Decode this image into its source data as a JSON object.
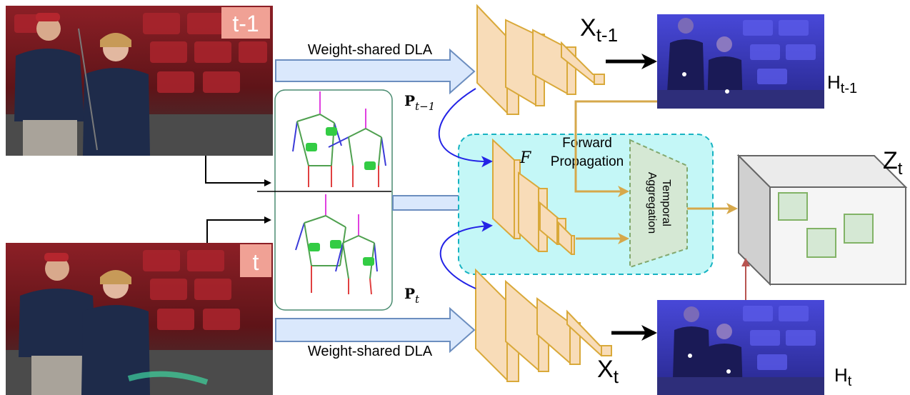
{
  "frames": {
    "prev_tag": "t-1",
    "curr_tag": "t"
  },
  "labels": {
    "dla_top": "Weight-shared DLA",
    "dla_bottom": "Weight-shared DLA",
    "x_prev_base": "X",
    "x_prev_sub": "t-1",
    "x_curr_base": "X",
    "x_curr_sub": "t",
    "h_prev_base": "H",
    "h_prev_sub": "t-1",
    "h_curr_base": "H",
    "h_curr_sub": "t",
    "p_prev_base": "P",
    "p_prev_sub": "t−1",
    "p_curr_base": "P",
    "p_curr_sub": "t",
    "f_label": "F",
    "forward_line1": "Forward",
    "forward_line2": "Propagation",
    "temporal_line1": "Temporal",
    "temporal_line2": "Aggregation",
    "z_base": "Z",
    "z_sub": "t"
  },
  "colors": {
    "feature_fill": "#f8dcb8",
    "feature_stroke": "#d9a93a",
    "aggregation_fill": "#d5e8d4",
    "aggregation_stroke": "#82a86e",
    "propagation_bg": "#c4f7f7",
    "propagation_border": "#17b3c2",
    "wide_arrow_fill": "#dae8fc",
    "wide_arrow_stroke": "#6c8ebf",
    "gold_arrow": "#d6a84b",
    "blue_curve": "#2323e6",
    "tag_bg": "#f0a195",
    "tag_text": "#ffffff",
    "heatmap_tint": "#3a3ac8",
    "output_box": "#666666",
    "green_box": "#82b366",
    "brown_arrow": "#b85450"
  }
}
